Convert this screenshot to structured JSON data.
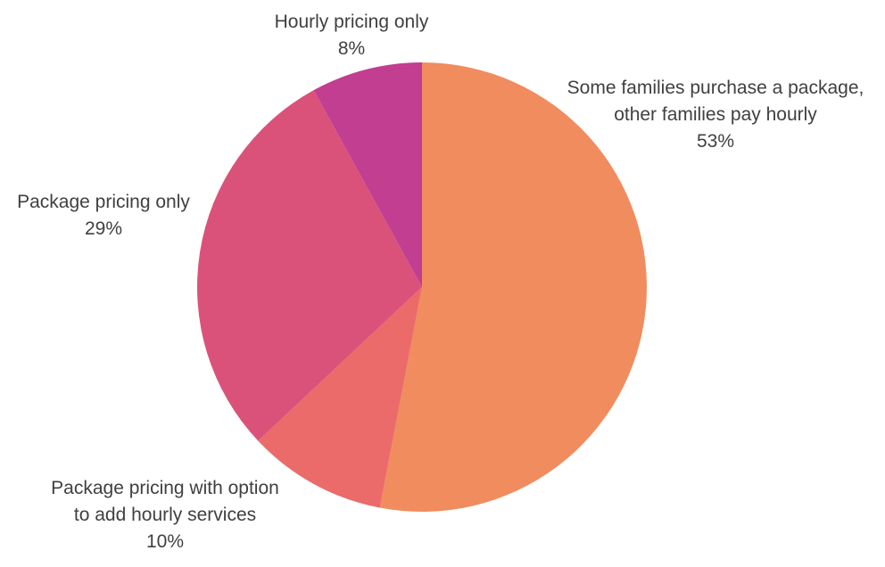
{
  "chart_data": {
    "type": "pie",
    "title": "",
    "legend": "none",
    "start_angle_deg": 0,
    "direction": "clockwise",
    "slices": [
      {
        "label_lines": [
          "Some families purchase a package,",
          "other families pay hourly"
        ],
        "value": 53,
        "value_label": "53%",
        "color": "#F08C5E"
      },
      {
        "label_lines": [
          "Package pricing with option",
          "to add hourly services"
        ],
        "value": 10,
        "value_label": "10%",
        "color": "#EB6B6A"
      },
      {
        "label_lines": [
          "Package pricing only"
        ],
        "value": 29,
        "value_label": "29%",
        "color": "#DA527A"
      },
      {
        "label_lines": [
          "Hourly pricing only"
        ],
        "value": 8,
        "value_label": "8%",
        "color": "#C13E90"
      }
    ]
  }
}
